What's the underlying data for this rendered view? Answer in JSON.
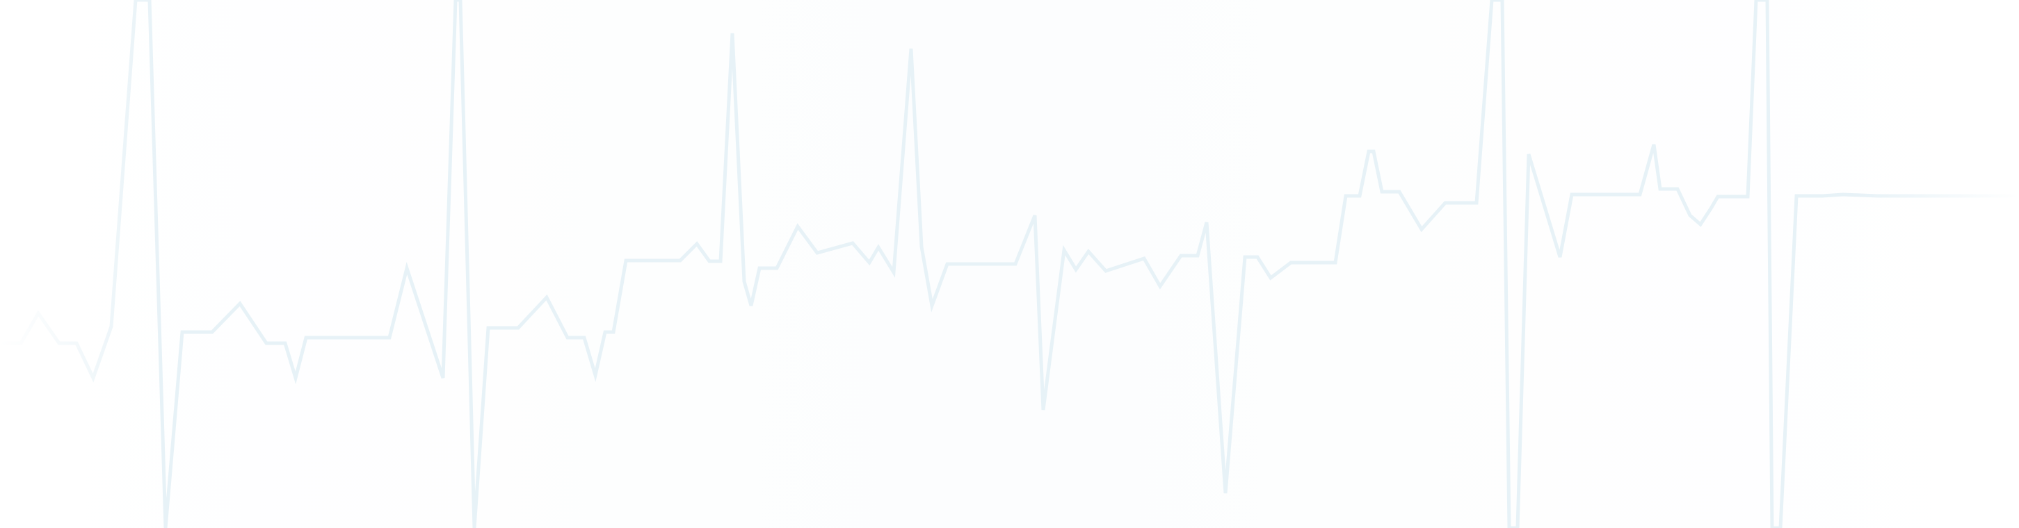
{
  "background": {
    "color": "#fdfeff"
  },
  "pulse_line": {
    "icon": "heartbeat-line",
    "stroke_color": "#e7f2f7",
    "fade_color": "#ffffff"
  }
}
